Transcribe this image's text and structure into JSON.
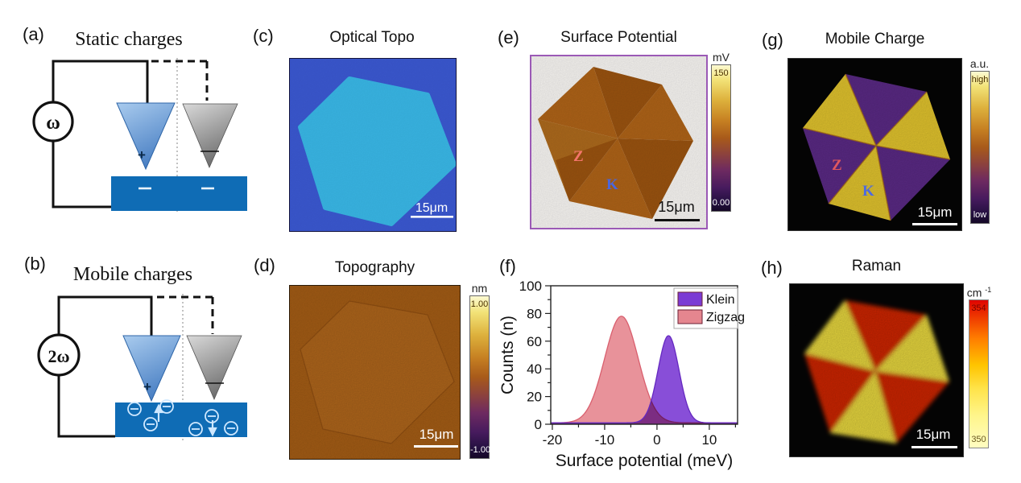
{
  "figure": {
    "background": "#ffffff",
    "scale_bar_label": "15μm"
  },
  "panels": {
    "a": {
      "letter": "(a)",
      "title": "Static charges",
      "source_label": "ω",
      "tip_plus_label": "+"
    },
    "b": {
      "letter": "(b)",
      "title": "Mobile charges",
      "source_label": "2ω",
      "tip_plus_label": "+"
    },
    "c": {
      "letter": "(c)",
      "title": "Optical Topo",
      "scale_bar": "15μm"
    },
    "d": {
      "letter": "(d)",
      "title": "Topography",
      "scale_bar": "15μm",
      "colorbar": {
        "unit": "nm",
        "max": "1.00",
        "min": "-1.00"
      }
    },
    "e": {
      "letter": "(e)",
      "title": "Surface Potential",
      "scale_bar": "15μm",
      "zigzag_label": "Z",
      "klein_label": "K",
      "colorbar": {
        "unit": "mV",
        "max": "150",
        "min": "0.00"
      }
    },
    "f": {
      "letter": "(f)"
    },
    "g": {
      "letter": "(g)",
      "title": "Mobile Charge",
      "scale_bar": "15μm",
      "zigzag_label": "Z",
      "klein_label": "K",
      "colorbar": {
        "unit": "a.u.",
        "max": "high",
        "min": "low"
      }
    },
    "h": {
      "letter": "(h)",
      "title": "Raman",
      "scale_bar": "15μm",
      "colorbar": {
        "unit_base": "cm",
        "unit_sup": "-1",
        "max": "354",
        "min": "350"
      }
    }
  },
  "colors": {
    "sample_blue": "#0f6cb5",
    "optical_background": "#3a57ce",
    "optical_flake": "#38b4e2",
    "topo_base": "#a85f16",
    "topo_flake": "#b1671c",
    "sp_dark_sector": "#9c5410",
    "sp_light_sector": "#b06418",
    "mc_klein_sector": "#5b2a86",
    "mc_zigzag_sector": "#e3c52e",
    "raman_klein_sector": "#d32500",
    "raman_zigzag_sector": "#eedd3f",
    "z_label_red": "#f4756b",
    "k_label_blue": "#4a66dd",
    "z_label_red_g": "#e0575e",
    "k_label_blue_g": "#4d6ae0",
    "sp_border_purple": "#9b59b6"
  },
  "chart_data": {
    "type": "area",
    "title": "",
    "xlabel": "Surface potential (meV)",
    "ylabel": "Counts (n)",
    "xlim": [
      -20.3,
      15.4
    ],
    "ylim": [
      0,
      100
    ],
    "x_ticks": [
      -20,
      -10,
      0,
      10
    ],
    "x_minor_ticks": [
      -15,
      -5,
      5,
      15
    ],
    "y_ticks": [
      0,
      20,
      40,
      60,
      80,
      100
    ],
    "y_minor_ticks": [
      10,
      30,
      50,
      70,
      90
    ],
    "grid": false,
    "legend_position": "top-right",
    "profile": "gaussian",
    "series": [
      {
        "name": "Klein",
        "color": "#7b3bd4",
        "outline": "#6529c0",
        "peak_center": 2.2,
        "peak_height": 63,
        "sigma": 2.0,
        "baseline": 1
      },
      {
        "name": "Zigzag",
        "color": "#e5868f",
        "outline": "#d95f6e",
        "peak_center": -6.8,
        "peak_height": 77,
        "sigma": 3.2,
        "baseline": 1
      }
    ]
  }
}
